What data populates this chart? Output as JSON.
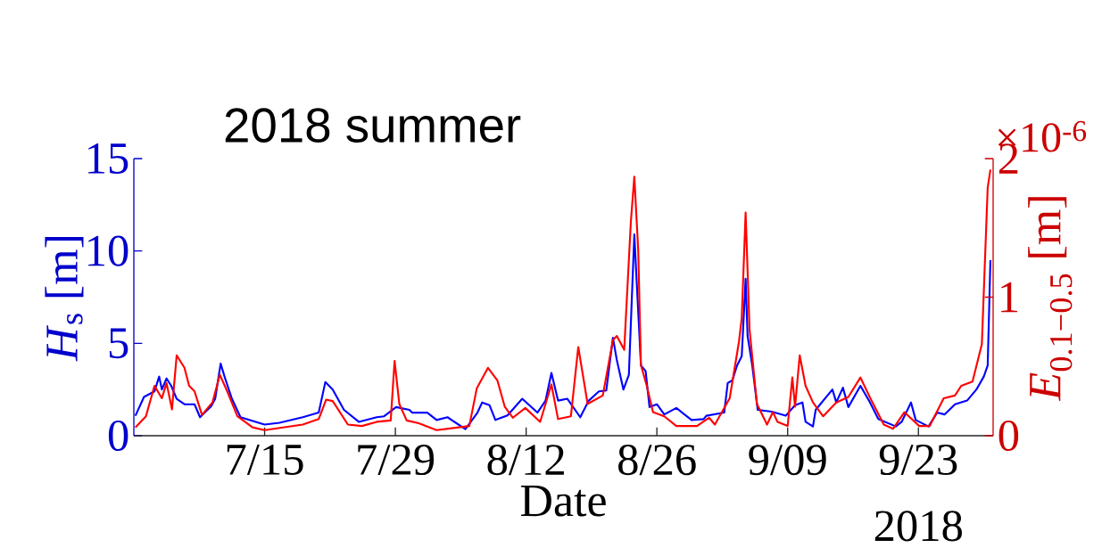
{
  "chart_data": {
    "type": "line",
    "title": "2018 summer",
    "xlabel": "Date",
    "ylabel": "*H*$_{s}$ [m]",
    "y2label": "*E*$_{0.1−0.5}$ [m]",
    "annotations": [
      "×10$^{-6}$",
      "2018"
    ],
    "xlim": [
      "2018-07-01",
      "2018-10-01"
    ],
    "xticks": [
      {
        "value": "2018-07-15",
        "label": "7/15"
      },
      {
        "value": "2018-07-29",
        "label": "7/29"
      },
      {
        "value": "2018-08-12",
        "label": "8/12"
      },
      {
        "value": "2018-08-26",
        "label": "8/26"
      },
      {
        "value": "2018-09-09",
        "label": "9/09"
      },
      {
        "value": "2018-09-23",
        "label": "9/23"
      }
    ],
    "ylim": [
      0,
      15
    ],
    "yticks": [
      0,
      5,
      10,
      15
    ],
    "y2lim": [
      0,
      2
    ],
    "y2ticks": [
      0,
      1,
      2
    ],
    "series": [
      {
        "color": "#0000ff",
        "x": [
          "2018-07-01T04:00",
          "2018-07-02T02:00",
          "2018-07-03T05:00",
          "2018-07-03T17:00",
          "2018-07-04T00:00",
          "2018-07-04T12:00",
          "2018-07-05T00:00",
          "2018-07-05T14:00",
          "2018-07-06T10:00",
          "2018-07-07T12:00",
          "2018-07-08T02:00",
          "2018-07-09T07:00",
          "2018-07-09T17:00",
          "2018-07-10T07:00",
          "2018-07-10T17:00",
          "2018-07-11T12:00",
          "2018-07-12T10:00",
          "2018-07-15T00:00",
          "2018-07-16T14:00",
          "2018-07-19T02:00",
          "2018-07-20T19:00",
          "2018-07-21T12:00",
          "2018-07-22T07:00",
          "2018-07-23T12:00",
          "2018-07-25T02:00",
          "2018-07-27T00:00",
          "2018-07-27T19:00",
          "2018-07-29T02:00",
          "2018-07-30T12:00",
          "2018-07-30T19:00",
          "2018-08-01T10:00",
          "2018-08-02T10:00",
          "2018-08-03T14:00",
          "2018-08-05T12:00",
          "2018-08-06T19:00",
          "2018-08-07T07:00",
          "2018-08-08T02:00",
          "2018-08-08T17:00",
          "2018-08-10T00:00",
          "2018-08-11T14:00",
          "2018-08-13T05:00",
          "2018-08-14T02:00",
          "2018-08-14T17:00",
          "2018-08-15T10:00",
          "2018-08-16T10:00",
          "2018-08-17T19:00",
          "2018-08-18T17:00",
          "2018-08-19T19:00",
          "2018-08-20T14:00",
          "2018-08-21T07:00",
          "2018-08-21T17:00",
          "2018-08-22T10:00",
          "2018-08-23T00:00",
          "2018-08-23T14:00",
          "2018-08-24T00:00",
          "2018-08-24T07:00",
          "2018-08-24T19:00",
          "2018-08-25T05:00",
          "2018-08-26T00:00",
          "2018-08-26T19:00",
          "2018-08-28T02:00",
          "2018-08-29T17:00",
          "2018-08-31T00:00",
          "2018-08-31T07:00",
          "2018-09-02T05:00",
          "2018-09-02T14:00",
          "2018-09-03T02:00",
          "2018-09-03T14:00",
          "2018-09-04T02:00",
          "2018-09-04T12:00",
          "2018-09-04T17:00",
          "2018-09-05T05:00",
          "2018-09-05T19:00",
          "2018-09-07T07:00",
          "2018-09-08T19:00",
          "2018-09-09T19:00",
          "2018-09-10T14:00",
          "2018-09-10T22:00",
          "2018-09-11T17:00",
          "2018-09-12T00:00",
          "2018-09-13T19:00",
          "2018-09-14T05:00",
          "2018-09-14T22:00",
          "2018-09-15T12:00",
          "2018-09-16T19:00",
          "2018-09-17T17:00",
          "2018-09-18T17:00",
          "2018-09-20T14:00",
          "2018-09-21T05:00",
          "2018-09-22T05:00",
          "2018-09-22T17:00",
          "2018-09-24T02:00",
          "2018-09-25T00:00",
          "2018-09-25T19:00",
          "2018-09-26T22:00",
          "2018-09-28T05:00",
          "2018-09-29T05:00",
          "2018-09-30T00:00",
          "2018-09-30T10:00",
          "2018-09-30T17:00"
        ],
        "values": [
          1.08,
          2.1,
          2.4,
          3.2,
          2.5,
          3.1,
          2.7,
          2.0,
          1.7,
          1.7,
          1.0,
          1.6,
          2.0,
          3.9,
          3.2,
          2.0,
          1.0,
          0.6,
          0.7,
          1.0,
          1.25,
          2.9,
          2.5,
          1.4,
          0.75,
          1.0,
          1.05,
          1.55,
          1.4,
          1.25,
          1.25,
          0.85,
          1.0,
          0.35,
          1.25,
          1.8,
          1.65,
          0.85,
          1.1,
          2.0,
          1.25,
          1.9,
          3.4,
          1.9,
          2.0,
          1.0,
          1.9,
          2.4,
          2.45,
          5.3,
          4.1,
          2.5,
          3.3,
          10.9,
          6.7,
          3.8,
          3.5,
          1.55,
          1.7,
          1.15,
          1.5,
          0.85,
          0.9,
          1.08,
          1.25,
          2.85,
          3.0,
          3.8,
          4.3,
          8.5,
          5.4,
          3.8,
          1.4,
          1.3,
          1.08,
          1.65,
          1.8,
          0.75,
          0.5,
          1.4,
          2.5,
          1.8,
          2.6,
          1.55,
          2.7,
          1.9,
          0.9,
          0.5,
          0.75,
          1.8,
          0.85,
          0.5,
          1.25,
          1.15,
          1.7,
          1.9,
          2.5,
          3.2,
          3.8,
          9.5
        ]
      },
      {
        "color": "#ff0000",
        "axis": "y2",
        "x": [
          "2018-07-01T04:00",
          "2018-07-02T07:00",
          "2018-07-03T05:00",
          "2018-07-04T00:00",
          "2018-07-04T12:00",
          "2018-07-05T02:00",
          "2018-07-05T14:00",
          "2018-07-06T10:00",
          "2018-07-06T22:00",
          "2018-07-07T12:00",
          "2018-07-08T07:00",
          "2018-07-09T10:00",
          "2018-07-10T05:00",
          "2018-07-11T00:00",
          "2018-07-12T02:00",
          "2018-07-13T17:00",
          "2018-07-15T00:00",
          "2018-07-19T02:00",
          "2018-07-20T19:00",
          "2018-07-21T14:00",
          "2018-07-22T07:00",
          "2018-07-23T22:00",
          "2018-07-25T10:00",
          "2018-07-27T00:00",
          "2018-07-28T12:00",
          "2018-07-28T22:00",
          "2018-07-29T10:00",
          "2018-07-30T05:00",
          "2018-07-31T12:00",
          "2018-08-02T10:00",
          "2018-08-05T22:00",
          "2018-08-06T17:00",
          "2018-08-07T22:00",
          "2018-08-08T22:00",
          "2018-08-09T17:00",
          "2018-08-10T14:00",
          "2018-08-11T22:00",
          "2018-08-13T12:00",
          "2018-08-14T17:00",
          "2018-08-15T10:00",
          "2018-08-16T19:00",
          "2018-08-17T14:00",
          "2018-08-18T14:00",
          "2018-08-20T05:00",
          "2018-08-21T07:00",
          "2018-08-21T17:00",
          "2018-08-22T12:00",
          "2018-08-23T05:00",
          "2018-08-23T14:00",
          "2018-08-24T00:00",
          "2018-08-24T07:00",
          "2018-08-24T22:00",
          "2018-08-25T14:00",
          "2018-08-26T19:00",
          "2018-08-28T02:00",
          "2018-08-30T07:00",
          "2018-08-31T14:00",
          "2018-09-01T05:00",
          "2018-09-02T19:00",
          "2018-09-03T19:00",
          "2018-09-04T02:00",
          "2018-09-04T12:00",
          "2018-09-04T22:00",
          "2018-09-05T17:00",
          "2018-09-06T19:00",
          "2018-09-07T10:00",
          "2018-09-07T22:00",
          "2018-09-09T00:00",
          "2018-09-09T12:00",
          "2018-09-09T19:00",
          "2018-09-10T07:00",
          "2018-09-10T22:00",
          "2018-09-11T17:00",
          "2018-09-12T19:00",
          "2018-09-14T05:00",
          "2018-09-15T12:00",
          "2018-09-16T19:00",
          "2018-09-18T00:00",
          "2018-09-19T07:00",
          "2018-09-20T07:00",
          "2018-09-21T12:00",
          "2018-09-23T02:00",
          "2018-09-24T05:00",
          "2018-09-25T17:00",
          "2018-09-26T22:00",
          "2018-09-27T14:00",
          "2018-09-28T19:00",
          "2018-09-29T19:00",
          "2018-09-30T10:00",
          "2018-09-30T17:00"
        ],
        "values": [
          0.06,
          0.14,
          0.36,
          0.27,
          0.38,
          0.19,
          0.58,
          0.49,
          0.36,
          0.32,
          0.15,
          0.24,
          0.44,
          0.32,
          0.14,
          0.06,
          0.04,
          0.08,
          0.12,
          0.26,
          0.25,
          0.08,
          0.07,
          0.1,
          0.11,
          0.54,
          0.23,
          0.11,
          0.09,
          0.04,
          0.07,
          0.34,
          0.49,
          0.4,
          0.21,
          0.13,
          0.2,
          0.1,
          0.37,
          0.12,
          0.14,
          0.64,
          0.23,
          0.29,
          0.69,
          0.72,
          0.62,
          1.54,
          1.87,
          1.34,
          0.51,
          0.36,
          0.17,
          0.14,
          0.07,
          0.07,
          0.13,
          0.08,
          0.27,
          0.68,
          0.85,
          1.61,
          0.77,
          0.23,
          0.08,
          0.17,
          0.1,
          0.07,
          0.42,
          0.21,
          0.58,
          0.36,
          0.24,
          0.14,
          0.24,
          0.28,
          0.42,
          0.25,
          0.08,
          0.05,
          0.17,
          0.07,
          0.07,
          0.27,
          0.29,
          0.36,
          0.39,
          0.66,
          1.79,
          1.92
        ]
      }
    ]
  }
}
